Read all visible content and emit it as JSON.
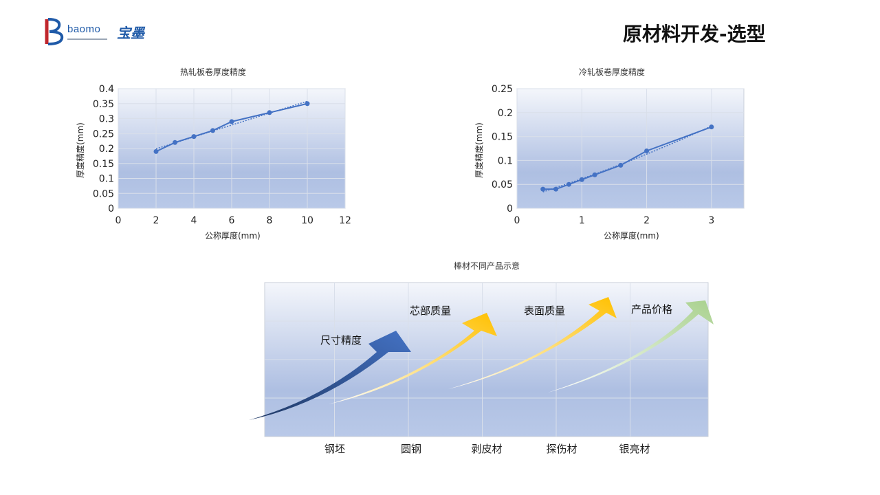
{
  "logo": {
    "word": "baomo",
    "cn": "宝墨"
  },
  "title": "原材料开发-选型",
  "chart_data": [
    {
      "type": "line",
      "title": "热轧板卷厚度精度",
      "xlabel": "公称厚度(mm)",
      "ylabel": "厚度精度(mm)",
      "xlim": [
        0,
        12
      ],
      "ylim": [
        0,
        0.4
      ],
      "xticks": [
        0,
        2,
        4,
        6,
        8,
        10,
        12
      ],
      "yticks": [
        0,
        0.05,
        0.1,
        0.15,
        0.2,
        0.25,
        0.3,
        0.35,
        0.4
      ],
      "series": [
        {
          "x": [
            2,
            3,
            4,
            5,
            6,
            8,
            10
          ],
          "y": [
            0.19,
            0.22,
            0.24,
            0.26,
            0.29,
            0.32,
            0.35
          ]
        }
      ],
      "trendline": {
        "type": "linear",
        "dotted": true
      },
      "grid": true,
      "color": "#4472c4"
    },
    {
      "type": "line",
      "title": "冷轧板卷厚度精度",
      "xlabel": "公称厚度(mm)",
      "ylabel": "厚度精度(mm)",
      "xlim": [
        0,
        3.5
      ],
      "ylim": [
        0,
        0.25
      ],
      "xticks": [
        0,
        1,
        2,
        3
      ],
      "yticks": [
        0,
        0.05,
        0.1,
        0.15,
        0.2,
        0.25
      ],
      "series": [
        {
          "x": [
            0.4,
            0.6,
            0.8,
            1.0,
            1.2,
            1.6,
            2.0,
            3.0
          ],
          "y": [
            0.04,
            0.04,
            0.05,
            0.06,
            0.07,
            0.09,
            0.12,
            0.17
          ]
        }
      ],
      "trendline": {
        "type": "quadratic",
        "dotted": true
      },
      "grid": true,
      "color": "#4472c4"
    },
    {
      "type": "area",
      "title": "棒材不同产品示意",
      "categories": [
        "钢坯",
        "圆钢",
        "剥皮材",
        "探伤材",
        "银亮材"
      ],
      "arrows": [
        {
          "label": "尺寸精度",
          "color": "#2f5597"
        },
        {
          "label": "芯部质量",
          "color": "#ffc000"
        },
        {
          "label": "表面质量",
          "color": "#ffc000"
        },
        {
          "label": "产品价格",
          "color": "#a9d18e"
        }
      ],
      "grid": true
    }
  ]
}
